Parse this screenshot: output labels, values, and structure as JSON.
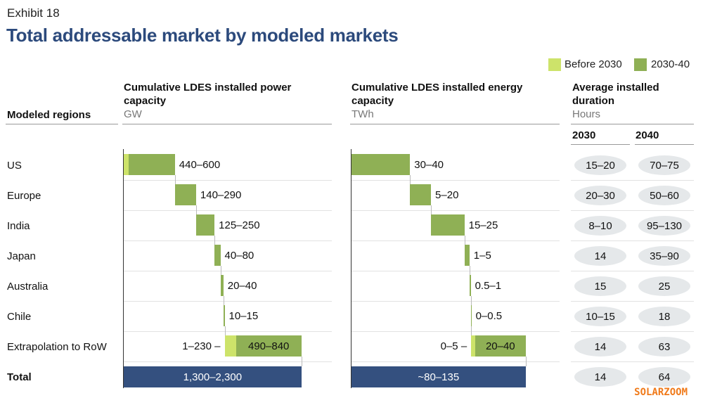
{
  "exhibit": "Exhibit 18",
  "title": "Total addressable market by modeled markets",
  "legend": [
    {
      "label": "Before 2030",
      "color": "#cde36a"
    },
    {
      "label": "2030-40",
      "color": "#8fb055"
    }
  ],
  "colors": {
    "total": "#34507f",
    "pill": "#e5e8ea"
  },
  "headers": {
    "regions": "Modeled regions",
    "power": "Cumulative LDES installed power capacity",
    "power_unit": "GW",
    "energy": "Cumulative LDES installed energy capacity",
    "energy_unit": "TWh",
    "duration": "Average installed duration",
    "duration_unit": "Hours",
    "y2030": "2030",
    "y2040": "2040"
  },
  "chart_data": {
    "type": "table",
    "regions": [
      "US",
      "Europe",
      "India",
      "Japan",
      "Australia",
      "Chile",
      "Extrapolation to RoW",
      "Total"
    ],
    "power_gw": [
      "440–600",
      "140–290",
      "125–250",
      "40–80",
      "20–40",
      "10–15",
      {
        "before_2030": "1–230",
        "2030_40": "490–840"
      },
      "1,300–2,300"
    ],
    "power_us_before_2030_share": 0.1,
    "energy_twh": [
      "30–40",
      "5–20",
      "15–25",
      "1–5",
      "0.5–1",
      "0–0.5",
      {
        "before_2030": "0–5",
        "2030_40": "20–40"
      },
      "~80–135"
    ],
    "duration_2030_hours": [
      "15–20",
      "20–30",
      "8–10",
      "14",
      "15",
      "10–15",
      "14",
      "14"
    ],
    "duration_2040_hours": [
      "70–75",
      "50–60",
      "95–130",
      "35–90",
      "25",
      "18",
      "63",
      "64"
    ]
  },
  "watermark": "SOLARZOOM"
}
